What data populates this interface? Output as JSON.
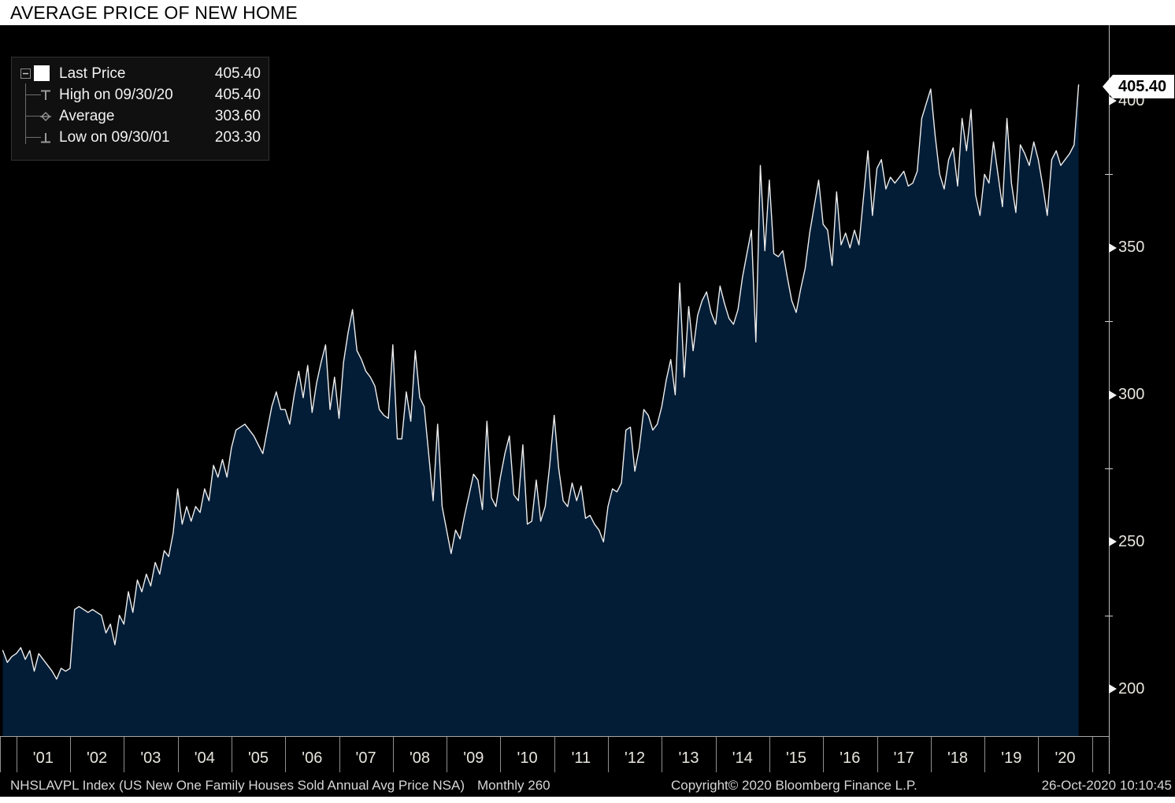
{
  "title": "AVERAGE PRICE OF NEW HOME",
  "legend": {
    "rows": [
      {
        "icon": "last-price-swatch",
        "label": "Last Price",
        "value": "405.40"
      },
      {
        "icon": "high-marker",
        "label": "High on 09/30/20",
        "value": "405.40"
      },
      {
        "icon": "average-marker",
        "label": "Average",
        "value": "303.60"
      },
      {
        "icon": "low-marker",
        "label": "Low on 09/30/01",
        "value": "203.30"
      }
    ]
  },
  "y_axis": {
    "major_ticks": [
      400,
      350,
      300,
      250,
      200
    ],
    "minor_ticks": [
      375,
      325,
      275,
      225
    ],
    "last_price_label": "405.40"
  },
  "x_axis": {
    "labels": [
      "'01",
      "'02",
      "'03",
      "'04",
      "'05",
      "'06",
      "'07",
      "'08",
      "'09",
      "'10",
      "'11",
      "'12",
      "'13",
      "'14",
      "'15",
      "'16",
      "'17",
      "'18",
      "'19",
      "'20"
    ]
  },
  "footer": {
    "left": "NHSLAVPL Index (US New One Family Houses Sold Annual Avg Price NSA)",
    "period": "Monthly 260",
    "copyright": "Copyright© 2020 Bloomberg Finance L.P.",
    "datetime": "26-Oct-2020 10:10:45"
  },
  "colors": {
    "area_fill": "#031d37",
    "line": "#ededed",
    "chart_bg": "#000000",
    "axis": "#b9b9b9",
    "tick_text": "#e8e6de"
  },
  "chart_data": {
    "type": "area",
    "title": "AVERAGE PRICE OF NEW HOME",
    "series_name": "NHSLAVPL Index (US New One Family Houses Sold Annual Avg Price NSA)",
    "frequency": "monthly",
    "start": {
      "year": 2000,
      "month": 9
    },
    "end": {
      "year": 2020,
      "month": 9
    },
    "ylim": [
      184,
      426
    ],
    "summary": {
      "last_price": 405.4,
      "high": {
        "date": "09/30/20",
        "value": 405.4
      },
      "average": 303.6,
      "low": {
        "date": "09/30/01",
        "value": 203.3
      }
    },
    "values": [
      213,
      209,
      211,
      212,
      214,
      210,
      213,
      206,
      212,
      210,
      208,
      206,
      203.3,
      207,
      206,
      207,
      227,
      228,
      227,
      226,
      227,
      226,
      225,
      219,
      222,
      215,
      225,
      222,
      233,
      226,
      237,
      233,
      239,
      235,
      243,
      239,
      247,
      245,
      253,
      268,
      256,
      262,
      257,
      262,
      260,
      268,
      264,
      276,
      272,
      278,
      272,
      282,
      288,
      289,
      290,
      288,
      286,
      283,
      280,
      288,
      296,
      301,
      295,
      295,
      290,
      300,
      308,
      299,
      310,
      294,
      304,
      311,
      317,
      295,
      306,
      292,
      311,
      321,
      329,
      315,
      312,
      308,
      306,
      303,
      295,
      293,
      292,
      317,
      285,
      285,
      301,
      291,
      315,
      299,
      296,
      280,
      264,
      290,
      262,
      254,
      246,
      254,
      251,
      259,
      266,
      273,
      271,
      261,
      291,
      265,
      262,
      272,
      280,
      286,
      266,
      264,
      283,
      256,
      257,
      271,
      257,
      262,
      276,
      293,
      275,
      264,
      262,
      270,
      264,
      269,
      258,
      259,
      256,
      254,
      250,
      262,
      268,
      267,
      270,
      288,
      289,
      274,
      282,
      295,
      293,
      288,
      290,
      296,
      305,
      312,
      300,
      338,
      306,
      330,
      315,
      327,
      332,
      335,
      328,
      324,
      337,
      331,
      326,
      324,
      329,
      340,
      348,
      356,
      318,
      378,
      349,
      373,
      348,
      347,
      349,
      340,
      332,
      328,
      336,
      343,
      355,
      364,
      373,
      358,
      356,
      344,
      369,
      351,
      355,
      350,
      356,
      351,
      367,
      383,
      361,
      377,
      380,
      370,
      374,
      372,
      374,
      376,
      371,
      372,
      376,
      394,
      399,
      404,
      388,
      375,
      370,
      380,
      384,
      371,
      394,
      383,
      397,
      368,
      361,
      375,
      372,
      386,
      375,
      364,
      394,
      372,
      362,
      385,
      382,
      378,
      386,
      380,
      371,
      361,
      380,
      383,
      378,
      380,
      382,
      385,
      405.4
    ]
  }
}
